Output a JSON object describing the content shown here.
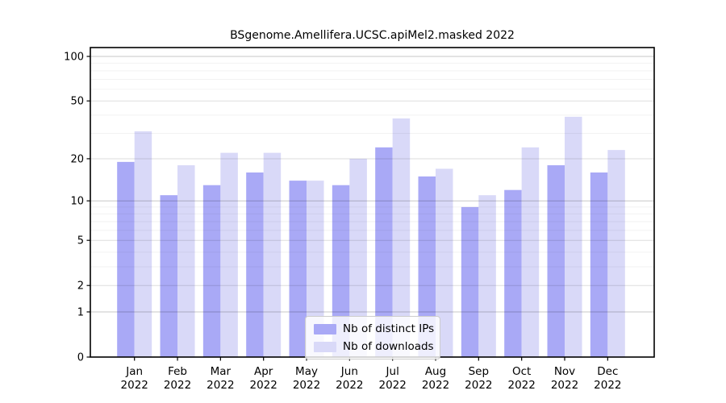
{
  "figure": {
    "background": "#ffffff"
  },
  "chart_data": {
    "type": "bar",
    "title": "BSgenome.Amellifera.UCSC.apiMel2.masked 2022",
    "categories": [
      "Jan 2022",
      "Feb 2022",
      "Mar 2022",
      "Apr 2022",
      "May 2022",
      "Jun 2022",
      "Jul 2022",
      "Aug 2022",
      "Sep 2022",
      "Oct 2022",
      "Nov 2022",
      "Dec 2022"
    ],
    "series": [
      {
        "name": "Nb of distinct IPs",
        "color": "#a9a9f6",
        "values": [
          19,
          11,
          13,
          16,
          14,
          13,
          24,
          15,
          9,
          12,
          18,
          16
        ]
      },
      {
        "name": "Nb of downloads",
        "color": "#d9d9f8",
        "values": [
          31,
          18,
          22,
          22,
          14,
          20,
          38,
          17,
          11,
          24,
          39,
          23
        ]
      }
    ],
    "xlabel": "",
    "ylabel": "",
    "yscale": "log10(1+x)",
    "yticks": [
      0,
      1,
      2,
      5,
      10,
      20,
      50,
      100
    ],
    "yticks_minor": [
      3,
      4,
      6,
      7,
      8,
      9,
      30,
      40,
      60,
      70,
      80,
      90
    ],
    "ylim": [
      0,
      115
    ],
    "grid": true,
    "legend_position": "bottom-center-inside"
  }
}
